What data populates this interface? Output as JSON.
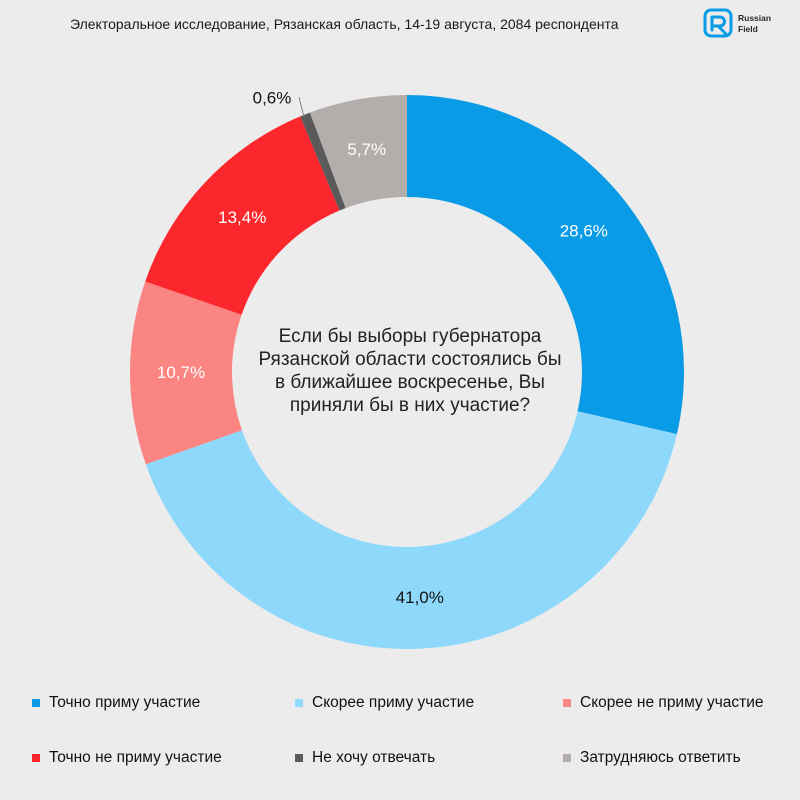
{
  "header": {
    "title": "Электоральное исследование, Рязанская область, 14-19 августа, 2084 респондента",
    "logo_text_line1": "Russian",
    "logo_text_line2": "Field"
  },
  "chart_data": {
    "type": "pie",
    "donut": true,
    "center_text_lines": [
      "Если бы выборы губернатора",
      "Рязанской области состоялись бы",
      "в ближайшее воскресенье, Вы",
      "приняли бы в них участие?"
    ],
    "slices": [
      {
        "label": "Точно приму участие",
        "value": 28.6,
        "value_label": "28,6%",
        "color": "#0a9be6",
        "label_color": "#ffffff"
      },
      {
        "label": "Скорее приму участие",
        "value": 41.0,
        "value_label": "41,0%",
        "color": "#8dd8fb",
        "label_color": "#111111"
      },
      {
        "label": "Скорее не приму участие",
        "value": 10.7,
        "value_label": "10,7%",
        "color": "#fb8582",
        "label_color": "#ffffff"
      },
      {
        "label": "Точно не приму участие",
        "value": 13.4,
        "value_label": "13,4%",
        "color": "#fb272c",
        "label_color": "#ffffff"
      },
      {
        "label": "Не хочу отвечать",
        "value": 0.6,
        "value_label": "0,6%",
        "color": "#5a5a5a",
        "label_color": "#111111"
      },
      {
        "label": "Затрудняюсь ответить",
        "value": 5.7,
        "value_label": "5,7%",
        "color": "#b3adab",
        "label_color": "#ffffff"
      }
    ],
    "legend_position": "bottom"
  }
}
